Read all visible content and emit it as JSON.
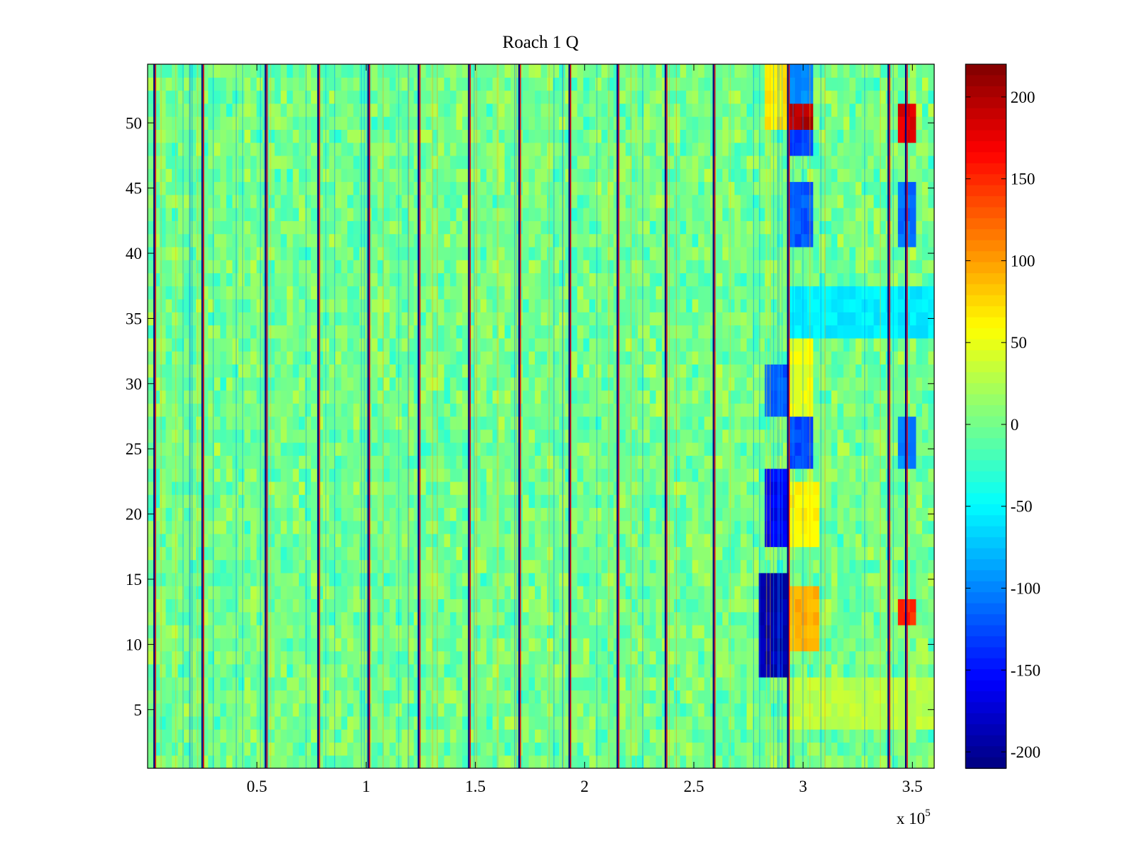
{
  "chart_data": {
    "type": "heatmap",
    "title": "Roach 1 Q",
    "xlabel": "",
    "ylabel": "",
    "x_multiplier_label": "x 10",
    "x_multiplier_exponent": "5",
    "xlim": [
      0,
      360000
    ],
    "ylim": [
      0.5,
      54.5
    ],
    "x_ticks": [
      50000,
      100000,
      150000,
      200000,
      250000,
      300000,
      350000
    ],
    "x_tick_labels": [
      "0.5",
      "1",
      "1.5",
      "2",
      "2.5",
      "3",
      "3.5"
    ],
    "y_ticks": [
      5,
      10,
      15,
      20,
      25,
      30,
      35,
      40,
      45,
      50
    ],
    "y_tick_labels": [
      "5",
      "10",
      "15",
      "20",
      "25",
      "30",
      "35",
      "40",
      "45",
      "50"
    ],
    "rows": 54,
    "colormap": "jet",
    "clim": [
      -210,
      220
    ],
    "colorbar": {
      "ticks": [
        200,
        150,
        100,
        50,
        0,
        -50,
        -100,
        -150,
        -200
      ],
      "tick_labels": [
        "200",
        "150",
        "100",
        "50",
        "0",
        "-50",
        "-100",
        "-150",
        "-200"
      ]
    },
    "background_value_range": [
      -40,
      40
    ],
    "spike_lines_x": [
      3000,
      25000,
      54000,
      78000,
      101000,
      124000,
      147000,
      170000,
      193000,
      215000,
      237000,
      259000,
      293000,
      339000,
      347000
    ],
    "features": [
      {
        "x": [
          284000,
          292000
        ],
        "rows": [
          50,
          54
        ],
        "value": 70
      },
      {
        "x": [
          295000,
          303000
        ],
        "rows": [
          52,
          54
        ],
        "value": -100
      },
      {
        "x": [
          295000,
          303000
        ],
        "rows": [
          49,
          51
        ],
        "value": 200
      },
      {
        "x": [
          295000,
          303000
        ],
        "rows": [
          48,
          49
        ],
        "value": -130
      },
      {
        "x": [
          346000,
          351000
        ],
        "rows": [
          49,
          51
        ],
        "value": 180
      },
      {
        "x": [
          295000,
          303000
        ],
        "rows": [
          41,
          45
        ],
        "value": -120
      },
      {
        "x": [
          346000,
          351000
        ],
        "rows": [
          41,
          45
        ],
        "value": -110
      },
      {
        "x": [
          295000,
          360000
        ],
        "rows": [
          34,
          37
        ],
        "value": -55
      },
      {
        "x": [
          295000,
          303000
        ],
        "rows": [
          27,
          33
        ],
        "value": 50
      },
      {
        "x": [
          284000,
          292000
        ],
        "rows": [
          28,
          31
        ],
        "value": -120
      },
      {
        "x": [
          295000,
          303000
        ],
        "rows": [
          24,
          27
        ],
        "value": -125
      },
      {
        "x": [
          346000,
          351000
        ],
        "rows": [
          24,
          27
        ],
        "value": -100
      },
      {
        "x": [
          283000,
          292000
        ],
        "rows": [
          18,
          23
        ],
        "value": -160
      },
      {
        "x": [
          295000,
          305000
        ],
        "rows": [
          18,
          22
        ],
        "value": 60
      },
      {
        "x": [
          282000,
          293000
        ],
        "rows": [
          8,
          15
        ],
        "value": -190
      },
      {
        "x": [
          295000,
          305000
        ],
        "rows": [
          10,
          14
        ],
        "value": 90
      },
      {
        "x": [
          346000,
          351000
        ],
        "rows": [
          12,
          13
        ],
        "value": 150
      },
      {
        "x": [
          295000,
          360000
        ],
        "rows": [
          4,
          7
        ],
        "value": 30
      }
    ]
  }
}
